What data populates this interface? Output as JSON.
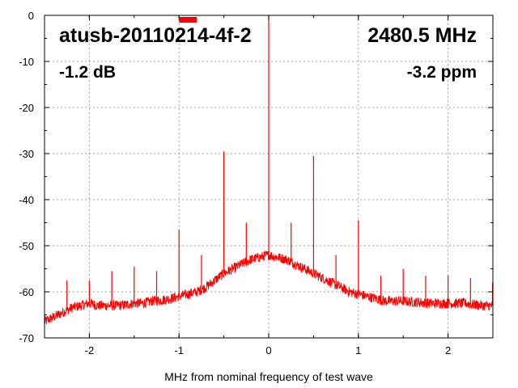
{
  "chart_data": {
    "type": "line",
    "title": "",
    "xlabel": "MHz from nominal frequency of test wave",
    "ylabel": "",
    "xlim": [
      -2.5,
      2.5
    ],
    "ylim": [
      -70,
      0
    ],
    "xticks": [
      -2,
      -1,
      0,
      1,
      2
    ],
    "yticks": [
      0,
      -10,
      -20,
      -30,
      -40,
      -50,
      -60,
      -70
    ],
    "grid": true,
    "legend": "none",
    "series_color": "#ff0000",
    "annotations": {
      "device": "atusb-20110214-4f-2",
      "frequency": "2480.5 MHz",
      "power": "-1.2 dB",
      "offset": "-3.2 ppm"
    },
    "marker": {
      "x": -0.9,
      "y": 0.8,
      "color": "#ff0000"
    },
    "series": [
      {
        "values_x": [
          -2.5,
          -2.4,
          -2.3,
          -2.2,
          -2.1,
          -2.0,
          -1.9,
          -1.8,
          -1.7,
          -1.6,
          -1.5,
          -1.4,
          -1.3,
          -1.2,
          -1.1,
          -1.0,
          -0.9,
          -0.8,
          -0.7,
          -0.6,
          -0.5,
          -0.4,
          -0.3,
          -0.2,
          -0.1,
          0.0,
          0.1,
          0.2,
          0.3,
          0.4,
          0.5,
          0.6,
          0.7,
          0.8,
          0.9,
          1.0,
          1.1,
          1.2,
          1.3,
          1.4,
          1.5,
          1.6,
          1.7,
          1.8,
          1.9,
          2.0,
          2.1,
          2.2,
          2.3,
          2.4,
          2.5
        ],
        "values_y": [
          -66.5,
          -65.5,
          -64.5,
          -63.5,
          -63.0,
          -62.5,
          -63.0,
          -63.0,
          -63.0,
          -62.8,
          -62.5,
          -62.5,
          -62.0,
          -61.8,
          -61.5,
          -61.0,
          -60.5,
          -60.0,
          -59.0,
          -57.5,
          -56.0,
          -55.0,
          -54.0,
          -53.0,
          -52.5,
          -52.0,
          -52.5,
          -53.0,
          -54.0,
          -55.0,
          -56.0,
          -57.0,
          -58.0,
          -59.0,
          -60.0,
          -60.5,
          -61.0,
          -61.5,
          -62.0,
          -62.0,
          -62.0,
          -62.2,
          -62.3,
          -62.5,
          -62.5,
          -62.5,
          -62.5,
          -62.5,
          -62.8,
          -63.0,
          -63.0
        ]
      }
    ],
    "spurs": [
      {
        "x": -2.25,
        "y": -57.5
      },
      {
        "x": -2.0,
        "y": -57.5
      },
      {
        "x": -1.75,
        "y": -55.5
      },
      {
        "x": -1.5,
        "y": -54.5
      },
      {
        "x": -1.25,
        "y": -55.5
      },
      {
        "x": -1.0,
        "y": -46.5
      },
      {
        "x": -0.75,
        "y": -52.0
      },
      {
        "x": -0.5,
        "y": -29.5
      },
      {
        "x": -0.25,
        "y": -45.0
      },
      {
        "x": 0.0,
        "y": 0.0
      },
      {
        "x": 0.25,
        "y": -45.0
      },
      {
        "x": 0.5,
        "y": -30.5
      },
      {
        "x": 0.75,
        "y": -52.0
      },
      {
        "x": 1.0,
        "y": -44.5
      },
      {
        "x": 1.25,
        "y": -56.5
      },
      {
        "x": 1.5,
        "y": -55.0
      },
      {
        "x": 1.75,
        "y": -56.5
      },
      {
        "x": 2.0,
        "y": -56.5
      },
      {
        "x": 2.25,
        "y": -57.0
      },
      {
        "x": 2.5,
        "y": -58.0
      }
    ]
  }
}
